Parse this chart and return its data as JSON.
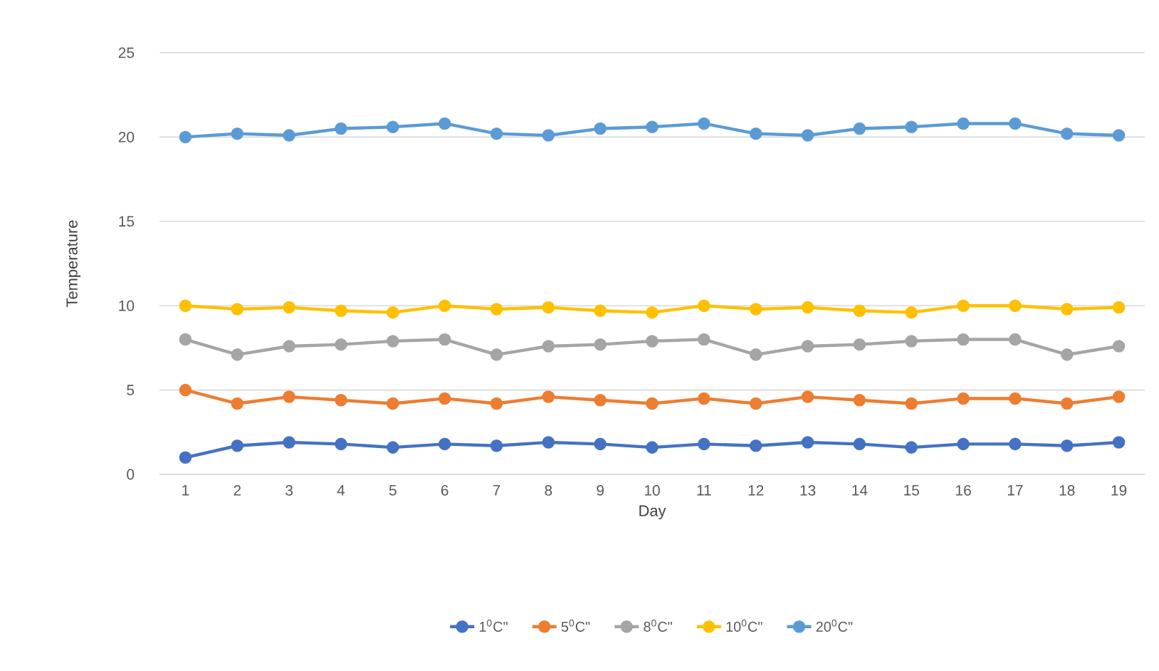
{
  "chart_data": {
    "type": "line",
    "xlabel": "Day",
    "ylabel": "Temperature",
    "categories": [
      "1",
      "2",
      "3",
      "4",
      "5",
      "6",
      "7",
      "8",
      "9",
      "10",
      "11",
      "12",
      "13",
      "14",
      "15",
      "16",
      "17",
      "18",
      "19"
    ],
    "series": [
      {
        "name": "1$^{0}$C\"",
        "color": "#4472c4",
        "values": [
          1.0,
          1.7,
          1.9,
          1.8,
          1.6,
          1.8,
          1.7,
          1.9,
          1.8,
          1.6,
          1.8,
          1.7,
          1.9,
          1.8,
          1.6,
          1.8,
          1.8,
          1.7,
          1.9
        ]
      },
      {
        "name": "5$^{0}$C\"",
        "color": "#ed7d31",
        "values": [
          5.0,
          4.2,
          4.6,
          4.4,
          4.2,
          4.5,
          4.2,
          4.6,
          4.4,
          4.2,
          4.5,
          4.2,
          4.6,
          4.4,
          4.2,
          4.5,
          4.5,
          4.2,
          4.6
        ]
      },
      {
        "name": "8$^{0}$C\"",
        "color": "#a5a5a5",
        "values": [
          8.0,
          7.1,
          7.6,
          7.7,
          7.9,
          8.0,
          7.1,
          7.6,
          7.7,
          7.9,
          8.0,
          7.1,
          7.6,
          7.7,
          7.9,
          8.0,
          8.0,
          7.1,
          7.6
        ]
      },
      {
        "name": "10$^{0}$C\"",
        "color": "#ffc000",
        "values": [
          10.0,
          9.8,
          9.9,
          9.7,
          9.6,
          10.0,
          9.8,
          9.9,
          9.7,
          9.6,
          10.0,
          9.8,
          9.9,
          9.7,
          9.6,
          10.0,
          10.0,
          9.8,
          9.9
        ]
      },
      {
        "name": "20$^{0}$C\"",
        "color": "#5b9bd5",
        "values": [
          20.0,
          20.2,
          20.1,
          20.5,
          20.6,
          20.8,
          20.2,
          20.1,
          20.5,
          20.6,
          20.8,
          20.2,
          20.1,
          20.5,
          20.6,
          20.8,
          20.8,
          20.2,
          20.1
        ]
      }
    ],
    "ylim": [
      0,
      25
    ],
    "yticks": [
      0,
      5,
      10,
      15,
      20,
      25
    ],
    "grid": "y",
    "legend": "bottom",
    "marker": "circle",
    "line_style": "solid"
  }
}
